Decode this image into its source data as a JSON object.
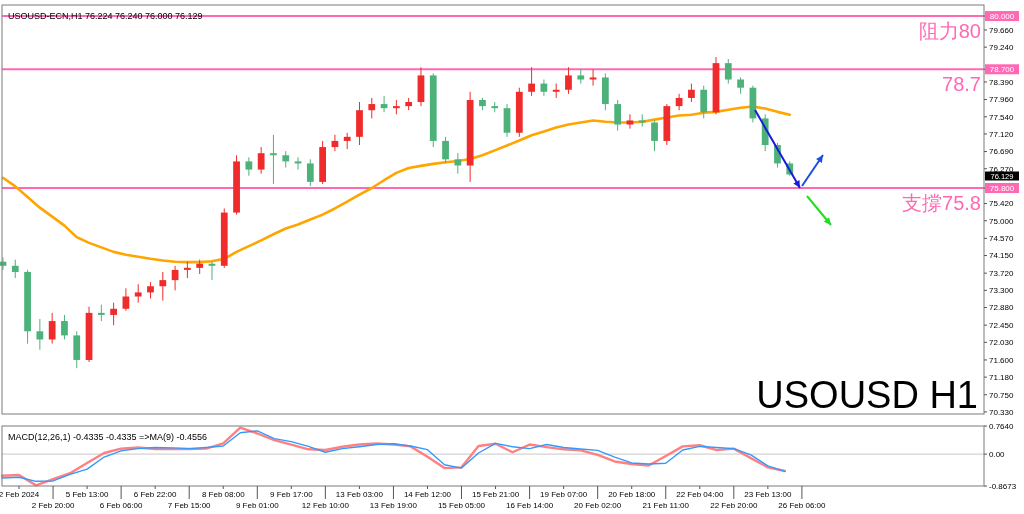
{
  "chart_data": [
    {
      "type": "candlestick",
      "title": "USOUSD-ECN,H1 76.224 76.240 76.000 76.129",
      "annotations": [
        "USOUSD H1",
        "76.129"
      ],
      "categories": [
        null,
        null,
        null,
        null,
        null,
        null,
        null,
        null,
        null,
        null,
        null,
        null,
        null,
        null,
        null,
        null,
        null,
        null,
        null,
        null,
        null,
        null,
        null,
        null,
        null,
        null,
        null,
        null,
        null,
        null,
        null,
        null,
        null,
        null,
        null,
        null,
        null,
        null,
        null,
        null,
        null,
        null,
        null,
        null,
        null,
        null,
        null,
        null,
        null,
        null,
        null,
        null,
        null,
        null,
        null,
        null,
        null,
        null,
        null,
        null,
        null,
        null,
        null,
        null,
        null
      ],
      "ohlc": [
        [
          74.0,
          74.1,
          73.8,
          73.9
        ],
        [
          73.9,
          74.05,
          73.6,
          73.75
        ],
        [
          73.75,
          73.8,
          72.0,
          72.3
        ],
        [
          72.3,
          72.6,
          71.85,
          72.1
        ],
        [
          72.1,
          72.75,
          72.0,
          72.55
        ],
        [
          72.55,
          72.7,
          72.1,
          72.2
        ],
        [
          72.2,
          72.3,
          71.4,
          71.6
        ],
        [
          71.6,
          72.9,
          71.55,
          72.75
        ],
        [
          72.75,
          72.95,
          72.55,
          72.7
        ],
        [
          72.7,
          73.0,
          72.45,
          72.85
        ],
        [
          72.85,
          73.35,
          72.8,
          73.15
        ],
        [
          73.15,
          73.45,
          73.0,
          73.25
        ],
        [
          73.25,
          73.5,
          73.1,
          73.4
        ],
        [
          73.4,
          73.75,
          73.05,
          73.55
        ],
        [
          73.55,
          73.9,
          73.3,
          73.8
        ],
        [
          73.8,
          74.0,
          73.6,
          73.85
        ],
        [
          73.85,
          74.05,
          73.7,
          73.95
        ],
        [
          73.95,
          74.0,
          73.55,
          73.9
        ],
        [
          73.9,
          75.3,
          73.85,
          75.2
        ],
        [
          75.2,
          76.6,
          75.15,
          76.45
        ],
        [
          76.45,
          76.55,
          76.1,
          76.25
        ],
        [
          76.25,
          76.8,
          76.15,
          76.65
        ],
        [
          76.65,
          77.1,
          75.9,
          76.6
        ],
        [
          76.6,
          76.7,
          76.3,
          76.45
        ],
        [
          76.45,
          76.55,
          76.25,
          76.4
        ],
        [
          76.4,
          76.5,
          75.85,
          75.95
        ],
        [
          75.95,
          76.95,
          75.9,
          76.8
        ],
        [
          76.8,
          77.1,
          76.7,
          76.95
        ],
        [
          76.95,
          77.15,
          76.75,
          77.05
        ],
        [
          77.05,
          77.9,
          76.85,
          77.7
        ],
        [
          77.7,
          78.0,
          77.5,
          77.85
        ],
        [
          77.85,
          78.05,
          77.65,
          77.75
        ],
        [
          77.75,
          77.95,
          77.6,
          77.8
        ],
        [
          77.8,
          78.0,
          77.7,
          77.9
        ],
        [
          77.9,
          78.75,
          77.8,
          78.55
        ],
        [
          78.55,
          78.6,
          76.8,
          76.95
        ],
        [
          76.95,
          77.05,
          76.4,
          76.5
        ],
        [
          76.5,
          76.65,
          76.15,
          76.35
        ],
        [
          76.35,
          78.15,
          75.95,
          77.95
        ],
        [
          77.95,
          78.0,
          77.7,
          77.8
        ],
        [
          77.8,
          77.9,
          77.65,
          77.75
        ],
        [
          77.75,
          77.85,
          77.05,
          77.15
        ],
        [
          77.15,
          78.25,
          77.05,
          78.15
        ],
        [
          78.15,
          78.75,
          78.05,
          78.35
        ],
        [
          78.35,
          78.45,
          78.05,
          78.15
        ],
        [
          78.15,
          78.35,
          78.0,
          78.2
        ],
        [
          78.2,
          78.75,
          78.1,
          78.55
        ],
        [
          78.55,
          78.7,
          78.35,
          78.45
        ],
        [
          78.45,
          78.7,
          78.3,
          78.5
        ],
        [
          78.5,
          78.6,
          77.7,
          77.85
        ],
        [
          77.85,
          77.95,
          77.2,
          77.35
        ],
        [
          77.35,
          77.6,
          77.25,
          77.45
        ],
        [
          77.45,
          77.6,
          77.3,
          77.4
        ],
        [
          77.4,
          77.45,
          76.7,
          76.95
        ],
        [
          76.95,
          77.85,
          76.85,
          77.8
        ],
        [
          77.8,
          78.1,
          77.7,
          78.0
        ],
        [
          78.0,
          78.35,
          77.9,
          78.2
        ],
        [
          78.2,
          78.3,
          77.5,
          77.65
        ],
        [
          77.65,
          79.0,
          77.6,
          78.85
        ],
        [
          78.85,
          78.95,
          78.35,
          78.45
        ],
        [
          78.45,
          78.5,
          78.1,
          78.25
        ],
        [
          78.25,
          78.3,
          77.4,
          77.5
        ],
        [
          77.5,
          77.6,
          76.7,
          76.85
        ],
        [
          76.85,
          76.9,
          76.3,
          76.4
        ],
        [
          76.4,
          76.45,
          76.1,
          76.13
        ]
      ],
      "colors": [
        "#4cb27a",
        "#4cb27a",
        "#4cb27a",
        "#4cb27a",
        "#ef2b2b",
        "#4cb27a",
        "#4cb27a",
        "#ef2b2b",
        "#4cb27a",
        "#ef2b2b",
        "#ef2b2b",
        "#ef2b2b",
        "#ef2b2b",
        "#ef2b2b",
        "#ef2b2b",
        "#ef2b2b",
        "#ef2b2b",
        "#4cb27a",
        "#ef2b2b",
        "#ef2b2b",
        "#4cb27a",
        "#ef2b2b",
        "#4cb27a",
        "#4cb27a",
        "#4cb27a",
        "#4cb27a",
        "#ef2b2b",
        "#ef2b2b",
        "#ef2b2b",
        "#ef2b2b",
        "#ef2b2b",
        "#4cb27a",
        "#ef2b2b",
        "#ef2b2b",
        "#ef2b2b",
        "#4cb27a",
        "#4cb27a",
        "#4cb27a",
        "#ef2b2b",
        "#4cb27a",
        "#4cb27a",
        "#4cb27a",
        "#ef2b2b",
        "#ef2b2b",
        "#4cb27a",
        "#ef2b2b",
        "#ef2b2b",
        "#4cb27a",
        "#ef2b2b",
        "#4cb27a",
        "#4cb27a",
        "#ef2b2b",
        "#4cb27a",
        "#4cb27a",
        "#ef2b2b",
        "#ef2b2b",
        "#ef2b2b",
        "#4cb27a",
        "#ef2b2b",
        "#4cb27a",
        "#4cb27a",
        "#4cb27a",
        "#4cb27a",
        "#4cb27a",
        "#4cb27a"
      ],
      "series": [
        {
          "type": "line",
          "color": "#ffa500",
          "values": [
            76.05,
            75.84,
            75.58,
            75.32,
            75.1,
            74.88,
            74.6,
            74.46,
            74.35,
            74.24,
            74.17,
            74.12,
            74.07,
            74.03,
            74.0,
            73.99,
            73.99,
            74.01,
            74.07,
            74.24,
            74.38,
            74.52,
            74.67,
            74.81,
            74.91,
            75.03,
            75.15,
            75.3,
            75.47,
            75.64,
            75.8,
            75.99,
            76.17,
            76.29,
            76.34,
            76.39,
            76.43,
            76.46,
            76.51,
            76.6,
            76.72,
            76.84,
            76.96,
            77.09,
            77.18,
            77.28,
            77.35,
            77.4,
            77.45,
            77.42,
            77.4,
            77.4,
            77.42,
            77.47,
            77.52,
            77.57,
            77.59,
            77.64,
            77.66,
            77.71,
            77.76,
            77.79,
            77.74,
            77.66,
            77.59
          ]
        }
      ],
      "ylim": [
        70.28,
        80.27
      ],
      "yticks": [
        {
          "value": 80,
          "label": "80.000"
        },
        {
          "value": 79.66,
          "label": "79.660"
        },
        {
          "value": 79.24,
          "label": "79.240"
        },
        {
          "value": 78.7,
          "label": "78.700"
        },
        {
          "value": 78.39,
          "label": "78.390"
        },
        {
          "value": 77.96,
          "label": "77.960"
        },
        {
          "value": 77.54,
          "label": "77.540"
        },
        {
          "value": 77.12,
          "label": "77.120"
        },
        {
          "value": 76.69,
          "label": "76.690"
        },
        {
          "value": 76.27,
          "label": "76.270"
        },
        {
          "value": 75.8,
          "label": "75.800"
        },
        {
          "value": 75.42,
          "label": "75.420"
        },
        {
          "value": 75,
          "label": "75.000"
        },
        {
          "value": 74.57,
          "label": "74.570"
        },
        {
          "value": 74.15,
          "label": "74.150"
        },
        {
          "value": 73.72,
          "label": "73.720"
        },
        {
          "value": 73.3,
          "label": "73.300"
        },
        {
          "value": 72.88,
          "label": "72.880"
        },
        {
          "value": 72.45,
          "label": "72.450"
        },
        {
          "value": 72.03,
          "label": "72.030"
        },
        {
          "value": 71.6,
          "label": "71.600"
        },
        {
          "value": 71.18,
          "label": "71.180"
        },
        {
          "value": 70.75,
          "label": "70.750"
        },
        {
          "value": 70.33,
          "label": "70.330"
        }
      ],
      "tick_labels": "y",
      "ref_lines": [
        {
          "axis": "y",
          "value": 80,
          "label": "阻力80",
          "color": "#ff69b4"
        },
        {
          "axis": "y",
          "value": 78.7,
          "label": "78.7",
          "color": "#ff69b4"
        },
        {
          "axis": "y",
          "value": 75.8,
          "label": "支撐75.8",
          "color": "#ff69b4"
        }
      ]
    },
    {
      "type": "line",
      "title": "MACD(12,26,1) -0.4335 -0.4335 =>MA(9) -0.4556",
      "categories": [
        null,
        "2 Feb 2024",
        null,
        "2 Feb 20:00",
        null,
        "5 Feb 13:00",
        null,
        "6 Feb 06:00",
        null,
        "6 Feb 22:00",
        null,
        "7 Feb 15:00",
        null,
        "8 Feb 08:00",
        null,
        "9 Feb 01:00",
        null,
        "9 Feb 17:00",
        null,
        "12 Feb 10:00",
        null,
        "13 Feb 03:00",
        null,
        "13 Feb 19:00",
        null,
        "14 Feb 12:00",
        null,
        "15 Feb 05:00",
        null,
        "15 Feb 21:00",
        null,
        "16 Feb 14:00",
        null,
        "19 Feb 07:00",
        null,
        "20 Feb 02:00",
        null,
        "20 Feb 18:00",
        null,
        "21 Feb 11:00",
        null,
        "22 Feb 04:00",
        null,
        "22 Feb 20:00",
        null,
        "23 Feb 13:00",
        null,
        "26 Feb 06:00"
      ],
      "series": [
        {
          "color": "#ff8080",
          "values": [
            -0.59,
            -0.57,
            -0.85,
            -0.68,
            -0.52,
            -0.24,
            0.03,
            0.15,
            0.18,
            0.14,
            0.14,
            0.14,
            0.15,
            0.29,
            0.72,
            0.56,
            0.38,
            0.26,
            0.13,
            0.11,
            0.2,
            0.26,
            0.29,
            0.26,
            0.21,
            -0.07,
            -0.38,
            -0.36,
            0.22,
            0.28,
            0.05,
            0.26,
            0.19,
            0.13,
            0.1,
            -0.02,
            -0.2,
            -0.27,
            -0.31,
            -0.05,
            0.21,
            0.24,
            0.11,
            0.15,
            -0.11,
            -0.36,
            -0.46,
            null
          ]
        },
        {
          "color": "#3399ff",
          "values": [
            -0.65,
            -0.63,
            -0.74,
            -0.73,
            -0.55,
            -0.41,
            -0.08,
            0.09,
            0.15,
            0.18,
            0.17,
            0.15,
            0.18,
            0.22,
            0.58,
            0.63,
            0.42,
            0.34,
            0.21,
            0.05,
            0.15,
            0.2,
            0.26,
            0.28,
            0.22,
            0.12,
            -0.29,
            -0.38,
            0.03,
            0.29,
            0.2,
            0.15,
            0.26,
            0.18,
            0.14,
            0.1,
            -0.08,
            -0.24,
            -0.27,
            -0.25,
            0.11,
            0.21,
            0.18,
            0.15,
            -0.02,
            -0.32,
            -0.47,
            null
          ]
        }
      ],
      "ylim": [
        -0.8673,
        0.764
      ],
      "yticks": [
        {
          "value": 0.764,
          "label": "0.7640"
        },
        {
          "value": 0,
          "label": "0.00"
        },
        {
          "value": -0.8673,
          "label": "-0.8673"
        }
      ],
      "ref_lines": [
        {
          "axis": "y",
          "value": 0,
          "label": null,
          "color": "#c8c8c8"
        }
      ]
    }
  ]
}
